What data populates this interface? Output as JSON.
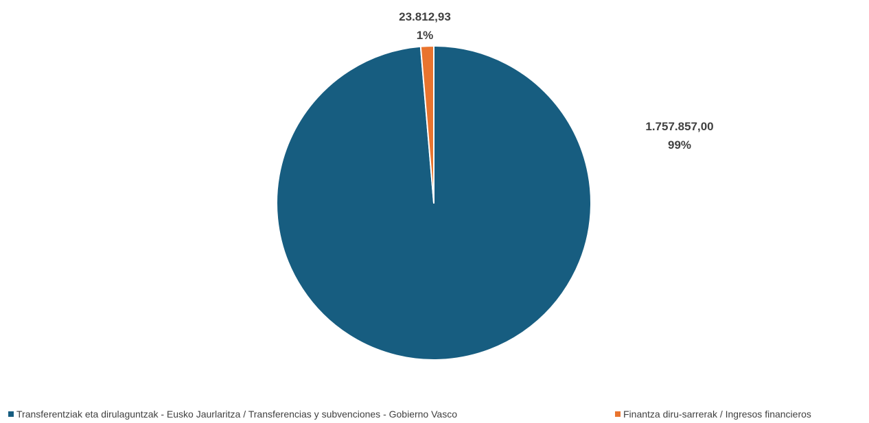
{
  "colors": {
    "series_1": "#175d80",
    "series_2": "#e9742e",
    "slice_border": "#ffffff",
    "label_text": "#404040"
  },
  "chart_data": {
    "type": "pie",
    "start_angle_deg": 0,
    "categories": [
      "Transferentziak eta dirulaguntzak - Eusko Jaurlaritza / Transferencias y subvenciones - Gobierno Vasco",
      "Finantza diru-sarrerak / Ingresos financieros"
    ],
    "values": [
      1757857.0,
      23812.93
    ],
    "value_labels": [
      "1.757.857,00",
      "23.812,93"
    ],
    "percent_labels": [
      "99%",
      "1%"
    ],
    "legend_position": "bottom"
  }
}
